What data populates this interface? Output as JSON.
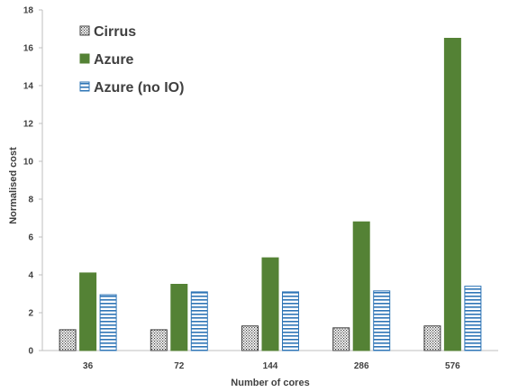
{
  "chart_data": {
    "type": "bar",
    "xlabel": "Number of cores",
    "ylabel": "Normalised cost",
    "ylim": [
      0,
      18
    ],
    "yticks": [
      0,
      2,
      4,
      6,
      8,
      10,
      12,
      14,
      16,
      18
    ],
    "categories": [
      "36",
      "72",
      "144",
      "286",
      "576"
    ],
    "legend_position": "top-left",
    "grid": false,
    "series": [
      {
        "name": "Cirrus",
        "values": [
          1.1,
          1.1,
          1.3,
          1.2,
          1.3
        ],
        "pattern": "dotted",
        "color": "#404040"
      },
      {
        "name": "Azure",
        "values": [
          4.1,
          3.5,
          4.9,
          6.8,
          16.5
        ],
        "pattern": "solid",
        "color": "#548235"
      },
      {
        "name": "Azure (no IO)",
        "values": [
          2.95,
          3.1,
          3.1,
          3.15,
          3.4
        ],
        "pattern": "horizontal-stripes",
        "color": "#2E75B6"
      }
    ]
  }
}
